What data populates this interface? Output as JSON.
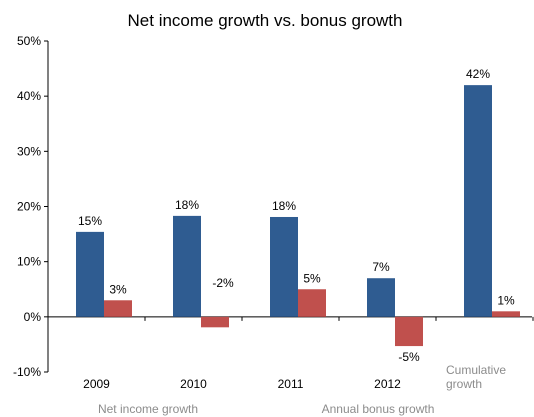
{
  "chart_data": {
    "type": "bar",
    "title": "Net income growth vs. bonus growth",
    "categories": [
      "2009",
      "2010",
      "2011",
      "2012",
      "Cumulative growth"
    ],
    "series": [
      {
        "name": "Net income growth",
        "color": "#2f5c91",
        "values": [
          15.4,
          18.3,
          18.1,
          7,
          42
        ],
        "labels": [
          "15%",
          "18%",
          "18%",
          "7%",
          "42%"
        ]
      },
      {
        "name": "Annual bonus growth",
        "color": "#c0504d",
        "values": [
          3,
          -1.9,
          5,
          -5.3,
          1
        ],
        "labels": [
          "3%",
          "-2%",
          "5%",
          "-5%",
          "1%"
        ]
      }
    ],
    "ylim": [
      -10,
      50
    ],
    "yticks": [
      -10,
      0,
      10,
      20,
      30,
      40,
      50
    ],
    "ytick_labels": [
      "-10%",
      "0%",
      "10%",
      "20%",
      "30%",
      "40%",
      "50%"
    ],
    "grid": false,
    "legend": "bottom"
  }
}
